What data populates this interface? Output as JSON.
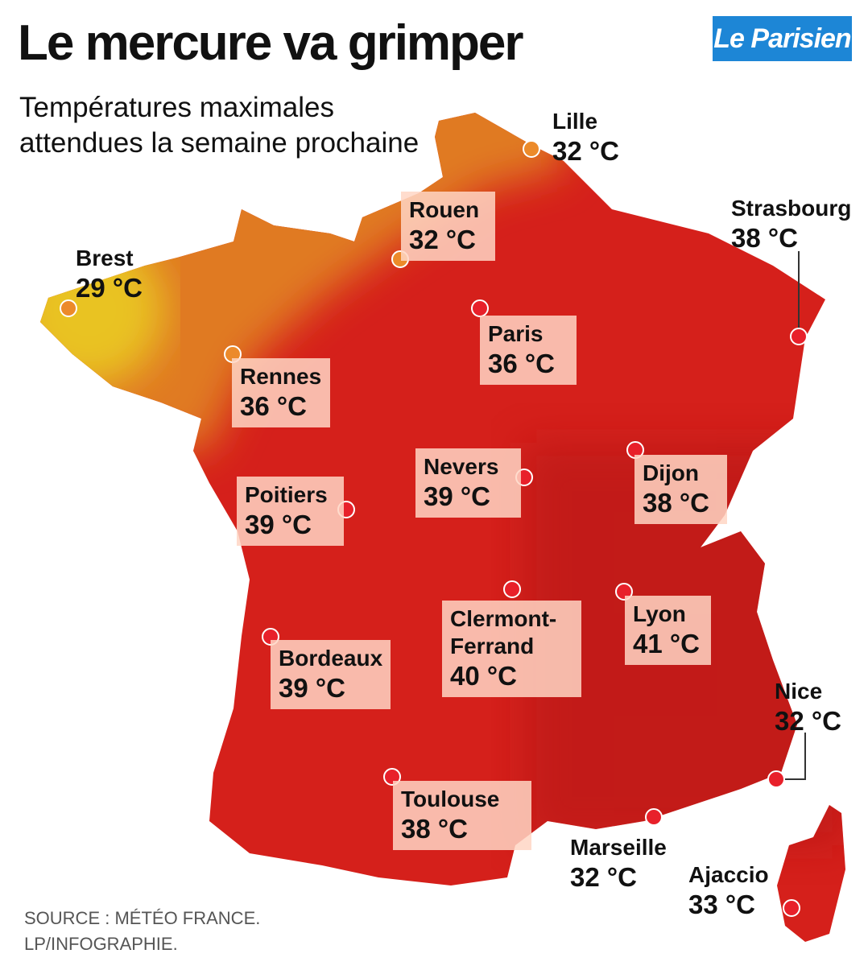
{
  "header": {
    "title": "Le mercure va grimper",
    "subtitle": "Températures maximales attendues la semaine prochaine",
    "logo": "Le Parisien"
  },
  "cities": [
    {
      "name": "Lille",
      "temp": "32 °C"
    },
    {
      "name": "Rouen",
      "temp": "32 °C"
    },
    {
      "name": "Brest",
      "temp": "29 °C"
    },
    {
      "name": "Strasbourg",
      "temp": "38 °C"
    },
    {
      "name": "Paris",
      "temp": "36 °C"
    },
    {
      "name": "Rennes",
      "temp": "36 °C"
    },
    {
      "name": "Nevers",
      "temp": "39 °C"
    },
    {
      "name": "Dijon",
      "temp": "38 °C"
    },
    {
      "name": "Poitiers",
      "temp": "39 °C"
    },
    {
      "name": "Clermont-Ferrand",
      "temp": "40 °C"
    },
    {
      "name": "Lyon",
      "temp": "41 °C"
    },
    {
      "name": "Bordeaux",
      "temp": "39 °C"
    },
    {
      "name": "Nice",
      "temp": "32 °C"
    },
    {
      "name": "Toulouse",
      "temp": "38 °C"
    },
    {
      "name": "Marseille",
      "temp": "32 °C"
    },
    {
      "name": "Ajaccio",
      "temp": "33 °C"
    }
  ],
  "footer": {
    "source": "SOURCE : MÉTÉO FRANCE.",
    "credit": "LP/INFOGRAPHIE."
  }
}
